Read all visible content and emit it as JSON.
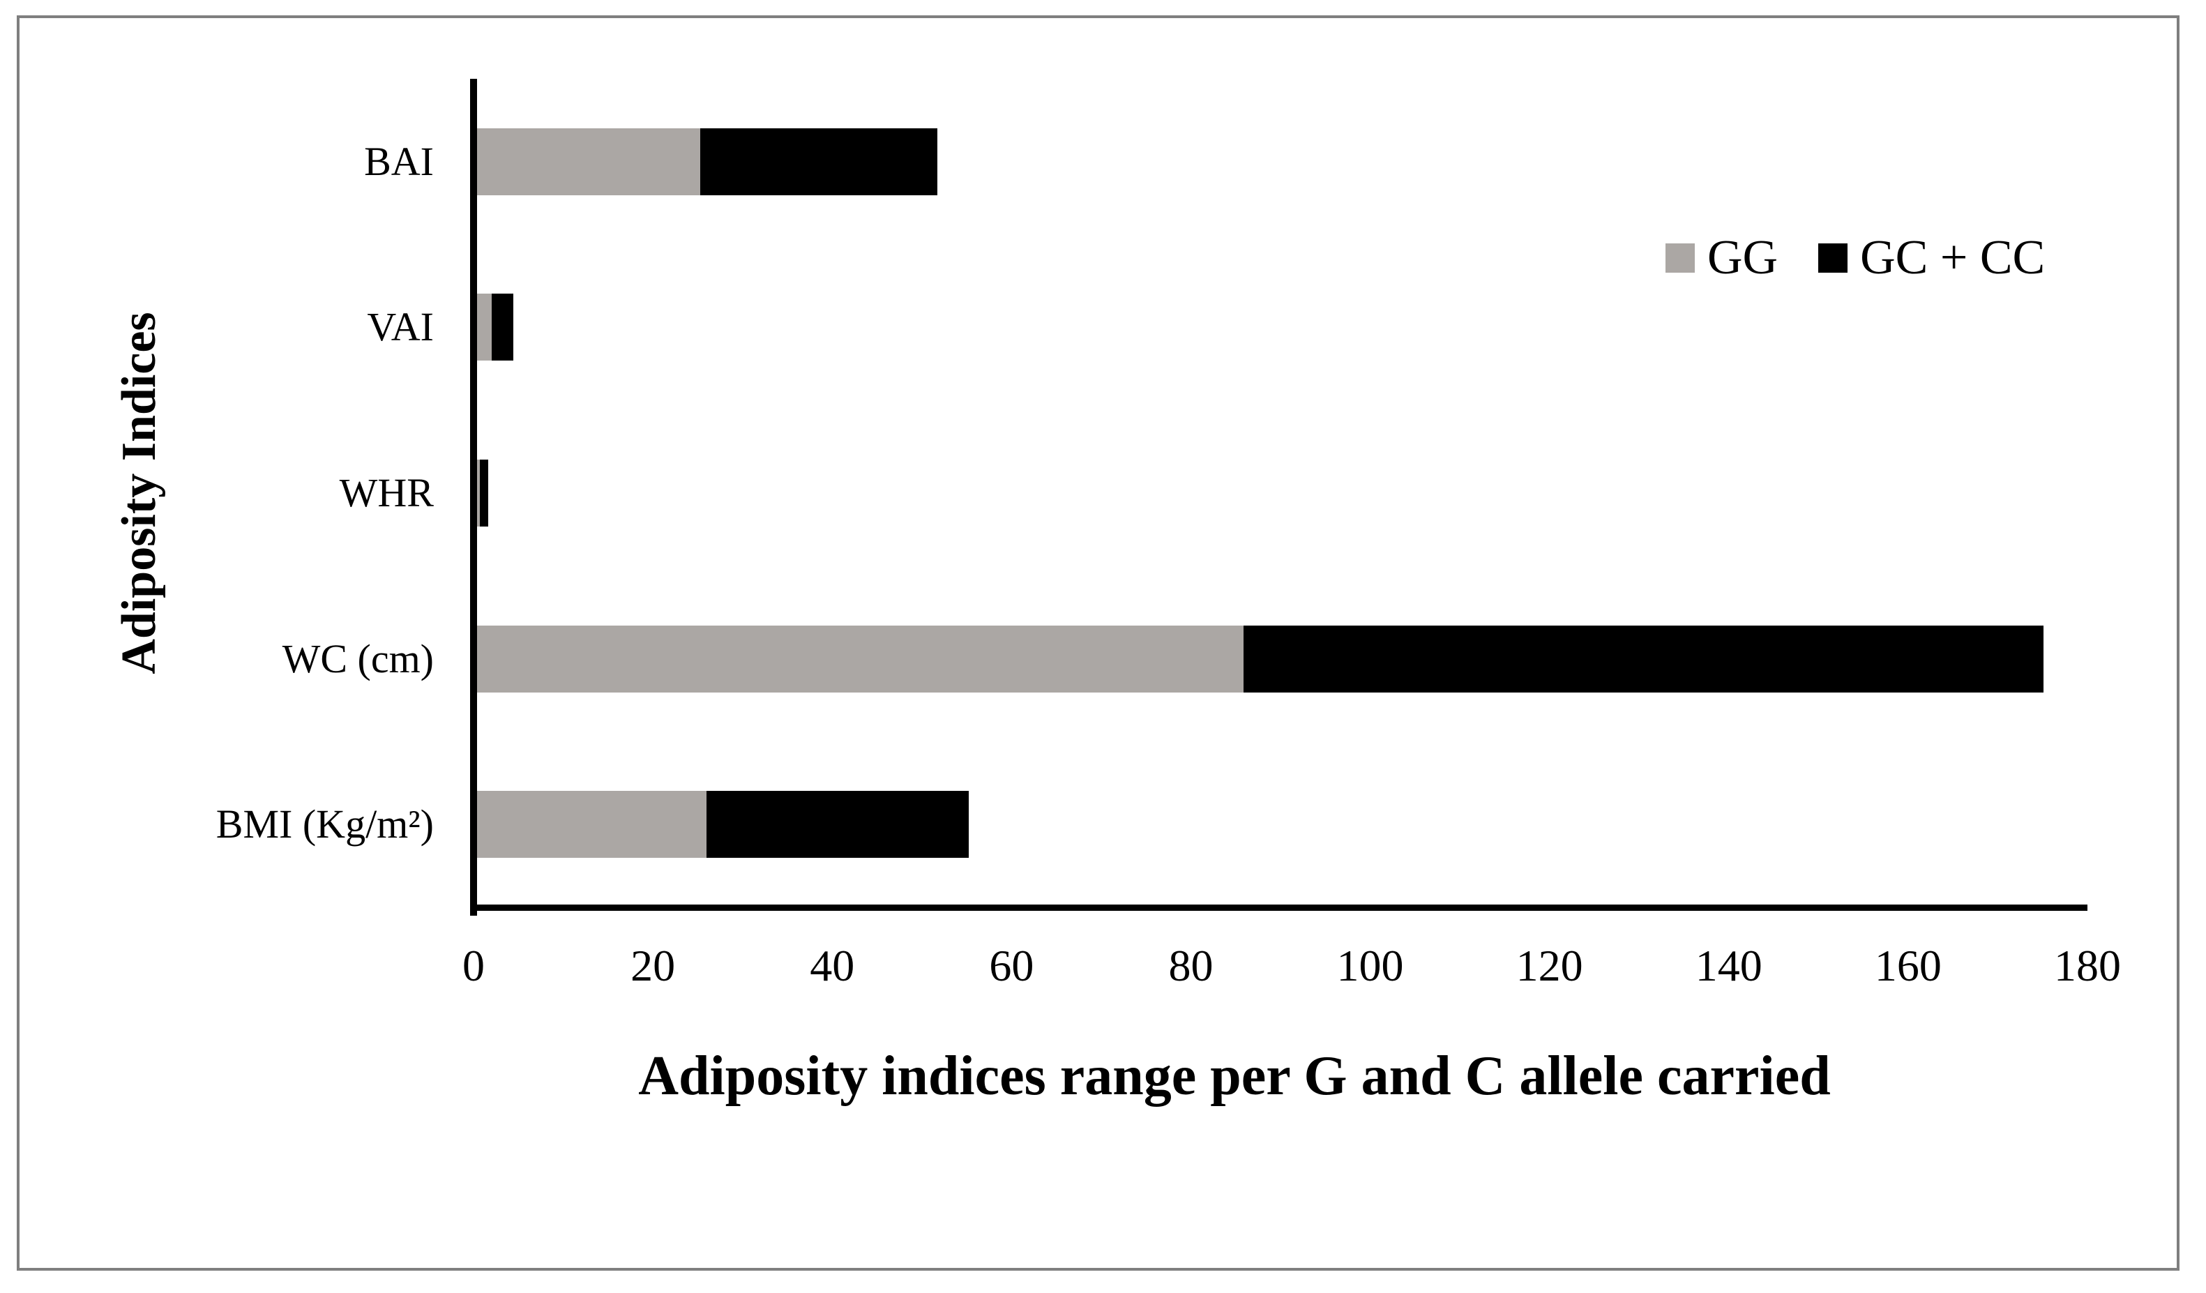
{
  "figure": {
    "background": "#ffffff",
    "border_color": "#7f7f7f"
  },
  "chart_data": {
    "type": "bar",
    "orientation": "horizontal",
    "stacked": true,
    "title": "",
    "xlabel": "Adiposity indices range per G and C allele carried",
    "ylabel": "Adiposity Indices",
    "categories": [
      "BAI",
      "VAI",
      "WHR",
      "WC (cm)",
      "BMI (Kg/m²)"
    ],
    "series": [
      {
        "name": "GG",
        "color": "#aba7a4",
        "values": [
          25.3,
          2.0,
          0.7,
          85.9,
          26.0
        ]
      },
      {
        "name": "GC + CC",
        "color": "#000000",
        "values": [
          26.4,
          2.4,
          0.9,
          89.2,
          29.2
        ]
      }
    ],
    "xlim": [
      0,
      180
    ],
    "xticks": [
      0,
      20,
      40,
      60,
      80,
      100,
      120,
      140,
      160,
      180
    ],
    "grid": false,
    "legend_position": "upper-right",
    "axis_color": "#000000"
  }
}
